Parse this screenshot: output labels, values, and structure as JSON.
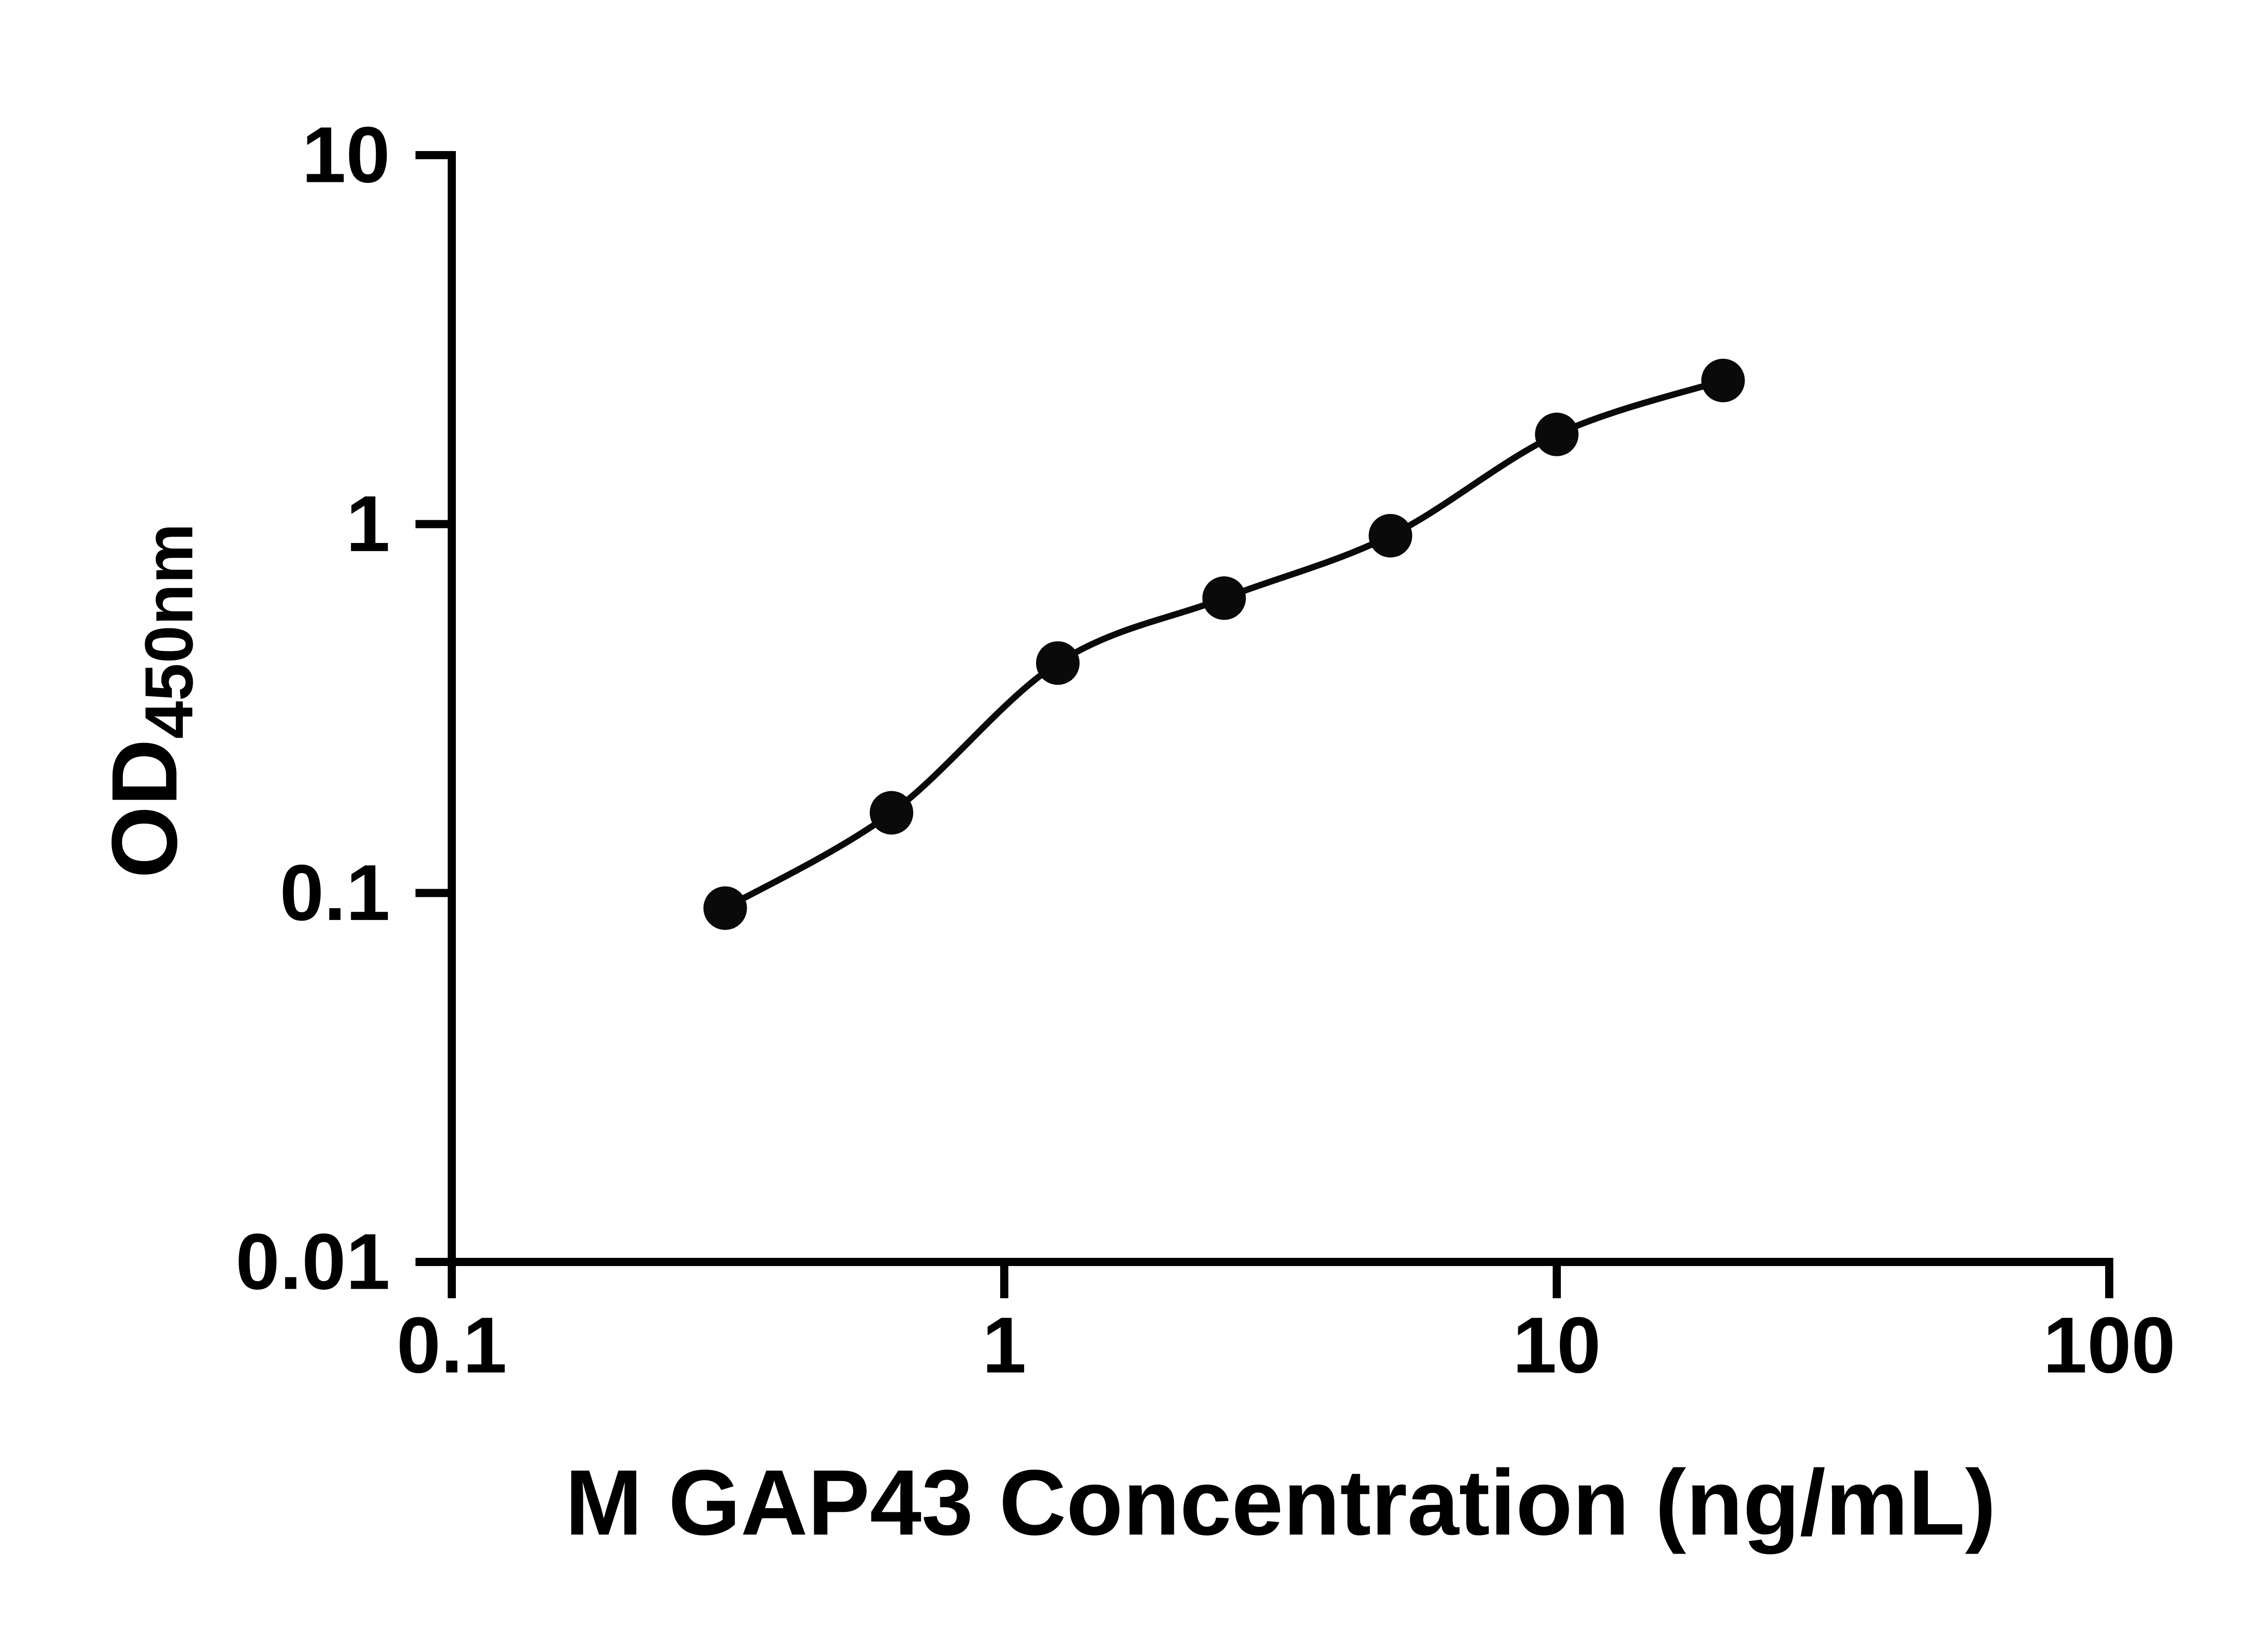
{
  "figure": {
    "background": "#ffffff"
  },
  "chart_data": {
    "type": "scatter",
    "title": "",
    "xlabel": "M GAP43 Concentration (ng/mL)",
    "ylabel": "OD",
    "ylabel_subscript": "450nm",
    "x_scale": "log",
    "y_scale": "log",
    "xlim": [
      0.1,
      100
    ],
    "ylim": [
      0.01,
      10
    ],
    "x_ticks": [
      0.1,
      1,
      10,
      100
    ],
    "x_tick_labels": [
      "0.1",
      "1",
      "10",
      "100"
    ],
    "y_ticks": [
      10,
      1,
      0.1,
      0.01
    ],
    "y_tick_labels": [
      "10",
      "1",
      "0.1",
      "0.01"
    ],
    "grid": false,
    "legend": false,
    "ink": "#000000",
    "series": [
      {
        "marker": "filled-circle",
        "marker_color": "#0a0a0a",
        "line_color": "#0a0a0a",
        "x": [
          0.3125,
          0.625,
          1.25,
          2.5,
          5,
          10,
          20
        ],
        "y": [
          0.091,
          0.165,
          0.42,
          0.63,
          0.93,
          1.75,
          2.45
        ]
      }
    ]
  }
}
